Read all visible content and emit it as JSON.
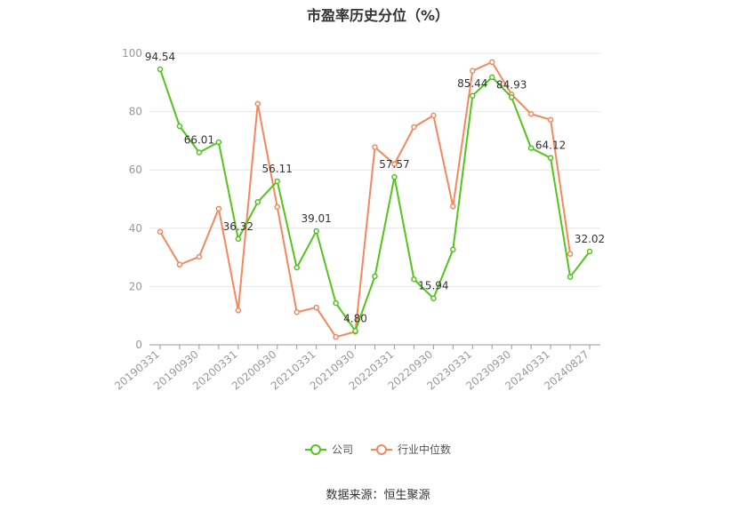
{
  "title": "市盈率历史分位（%）",
  "source": "数据来源：恒生聚源",
  "colors": {
    "company": "#52c41a",
    "industry": "#f5875f",
    "grid": "#e6e6e6",
    "axis": "#999999",
    "label": "#333333"
  },
  "chart_data": {
    "type": "line",
    "title": "市盈率历史分位（%）",
    "ylim": [
      0,
      100
    ],
    "yticks": [
      0,
      20,
      40,
      60,
      80,
      100
    ],
    "grid": true,
    "legend_position": "bottom-center",
    "x": [
      "20190331",
      "20190630",
      "20190930",
      "20191231",
      "20200331",
      "20200630",
      "20200930",
      "20201231",
      "20210331",
      "20210630",
      "20210930",
      "20211231",
      "20220331",
      "20220630",
      "20220930",
      "20221231",
      "20230331",
      "20230630",
      "20230930",
      "20231231",
      "20240331",
      "20240630",
      "20240827"
    ],
    "x_tick_labels": [
      "20190331",
      "20190930",
      "20200331",
      "20200930",
      "20210331",
      "20210930",
      "20220331",
      "20220930",
      "20230331",
      "20230930",
      "20240331",
      "20240827"
    ],
    "series": [
      {
        "name": "公司",
        "values": [
          94.54,
          75,
          66.01,
          69.5,
          36.32,
          49,
          56.11,
          26.5,
          39.01,
          14.3,
          4.8,
          23.5,
          57.57,
          22.5,
          15.94,
          32.7,
          85.44,
          91.8,
          84.93,
          67.5,
          64.12,
          23.3,
          32.02
        ],
        "labels": [
          "94.54",
          "",
          "66.01",
          "",
          "36.32",
          "",
          "56.11",
          "",
          "39.01",
          "",
          "4.80",
          "",
          "57.57",
          "",
          "15.94",
          "",
          "85.44",
          "",
          "84.93",
          "",
          "64.12",
          "",
          "32.02"
        ]
      },
      {
        "name": "行业中位数",
        "values": [
          38.8,
          27.5,
          30.2,
          46.7,
          11.8,
          82.7,
          47.3,
          11.2,
          12.8,
          2.7,
          4.5,
          67.8,
          62.0,
          74.7,
          78.7,
          47.5,
          94.0,
          97.0,
          85.9,
          79.2,
          77.2,
          31.2,
          null
        ]
      }
    ]
  }
}
